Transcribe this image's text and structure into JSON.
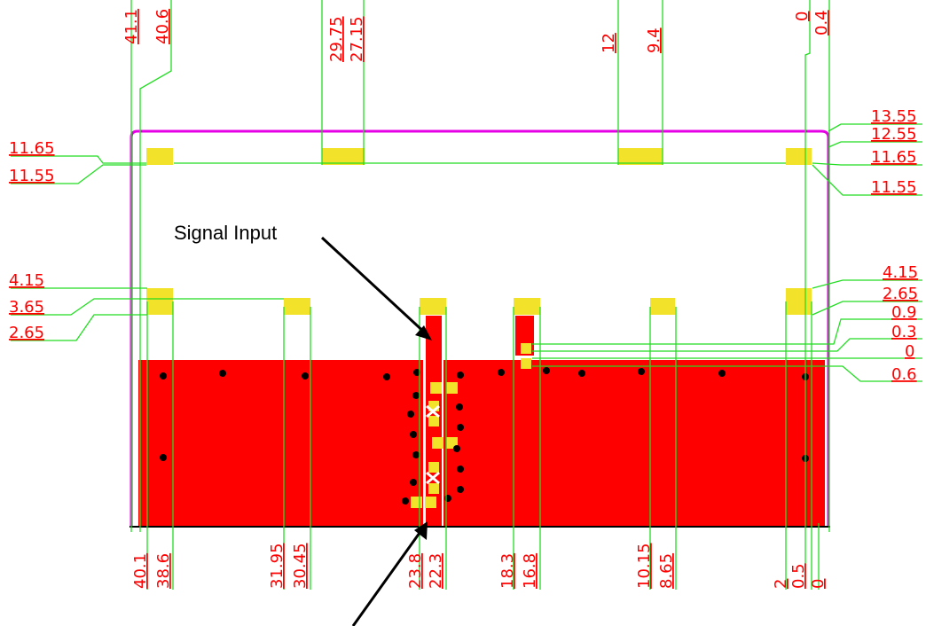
{
  "colors": {
    "board_outline": "#e600e6",
    "copper": "#ff0000",
    "pad": "#f2e22a",
    "dimension_line": "#22dd22",
    "dimension_text": "#ff0000",
    "via": "#000000",
    "callout": "#000000"
  },
  "callouts": {
    "signal_input": "Signal Input"
  },
  "dimensions": {
    "top": [
      "41.1",
      "40.6",
      "29.75",
      "27.15",
      "12",
      "9.4",
      "0",
      "0.4"
    ],
    "bottom": [
      "40.1",
      "38.6",
      "31.95",
      "30.45",
      "23.8",
      "22.3",
      "18.3",
      "16.8",
      "10.15",
      "8.65",
      "2",
      "0.5",
      "0"
    ],
    "left": [
      "11.65",
      "11.55",
      "4.15",
      "3.65",
      "2.65"
    ],
    "right": [
      "13.55",
      "12.55",
      "11.65",
      "11.55",
      "4.15",
      "2.65",
      "0.9",
      "0.3",
      "0",
      "0.6"
    ]
  }
}
